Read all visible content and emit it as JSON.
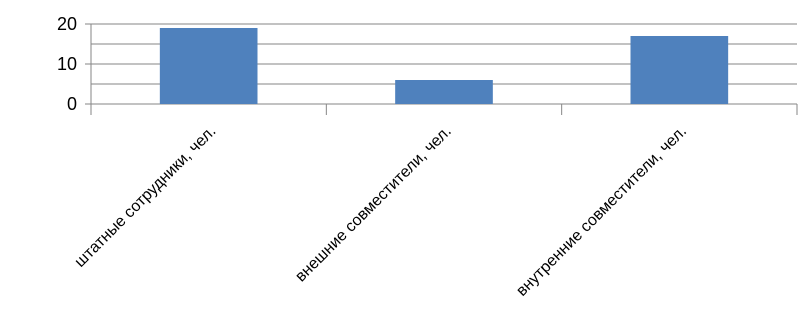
{
  "chart_data": {
    "type": "bar",
    "title": "",
    "xlabel": "",
    "ylabel": "",
    "categories": [
      "штатные сотрудники, чел.",
      "внешние совместители, чел.",
      "внутренние совместители, чел."
    ],
    "values": [
      19,
      6,
      17
    ],
    "ylim": [
      0,
      20
    ],
    "yticks": [
      0,
      10,
      20
    ],
    "grid": true,
    "legend": "none",
    "bar_color": "#4f81bd"
  }
}
